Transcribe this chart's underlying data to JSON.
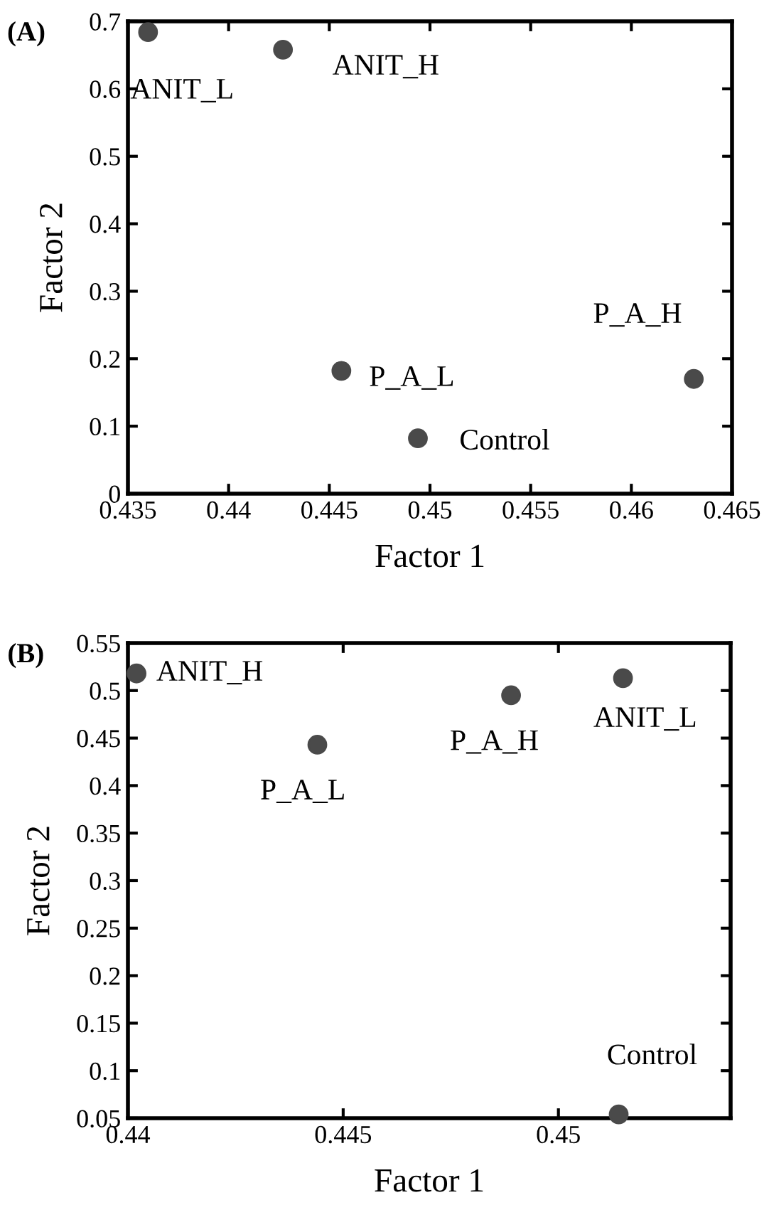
{
  "chart_data": [
    {
      "type": "scatter",
      "title": "(A)",
      "xlabel": "Factor 1",
      "ylabel": "Factor 2",
      "marker": "circle",
      "grid": false,
      "series": [
        {
          "color": "#4a4a4a",
          "x": [
            0.436,
            0.4427,
            0.4456,
            0.4494,
            0.4631
          ],
          "values": [
            0.684,
            0.658,
            0.182,
            0.082,
            0.17
          ]
        }
      ],
      "annotations": [
        {
          "text": "ANIT_L",
          "x": 0.436,
          "y": 0.684
        },
        {
          "text": "ANIT_H",
          "x": 0.4427,
          "y": 0.658
        },
        {
          "text": "P_A_L",
          "x": 0.4456,
          "y": 0.182
        },
        {
          "text": "Control",
          "x": 0.4494,
          "y": 0.082
        },
        {
          "text": "P_A_H",
          "x": 0.4631,
          "y": 0.17
        }
      ],
      "xlim": [
        0.435,
        0.465
      ],
      "xticks": [
        0.435,
        0.44,
        0.445,
        0.45,
        0.455,
        0.46,
        0.465
      ],
      "ylim": [
        0,
        0.7
      ],
      "yticks": [
        0,
        0.1,
        0.2,
        0.3,
        0.4,
        0.5,
        0.6,
        0.7
      ]
    },
    {
      "type": "scatter",
      "title": "(B)",
      "xlabel": "Factor 1",
      "ylabel": "Factor 2",
      "marker": "circle",
      "grid": false,
      "series": [
        {
          "color": "#4a4a4a",
          "x": [
            0.4402,
            0.4444,
            0.4489,
            0.4515,
            0.4514
          ],
          "values": [
            0.518,
            0.443,
            0.495,
            0.513,
            0.054
          ]
        }
      ],
      "annotations": [
        {
          "text": "ANIT_H",
          "x": 0.4402,
          "y": 0.518
        },
        {
          "text": "P_A_L",
          "x": 0.4444,
          "y": 0.443
        },
        {
          "text": "P_A_H",
          "x": 0.4489,
          "y": 0.495
        },
        {
          "text": "ANIT_L",
          "x": 0.4515,
          "y": 0.513
        },
        {
          "text": "Control",
          "x": 0.4514,
          "y": 0.054
        }
      ],
      "xlim": [
        0.44,
        0.454
      ],
      "xticks": [
        0.44,
        0.445,
        0.45
      ],
      "ylim": [
        0.05,
        0.55
      ],
      "yticks": [
        0.05,
        0.1,
        0.15,
        0.2,
        0.25,
        0.3,
        0.35,
        0.4,
        0.45,
        0.5,
        0.55
      ]
    }
  ]
}
